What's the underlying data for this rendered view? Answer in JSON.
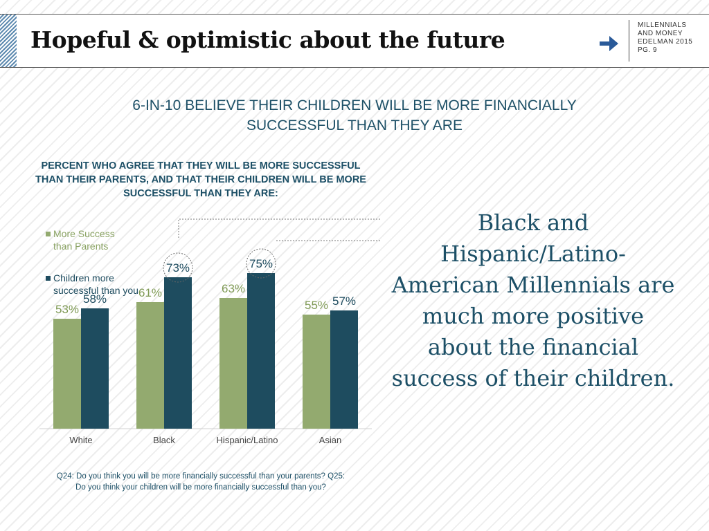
{
  "header": {
    "title": "Hopeful & optimistic about the future",
    "brand_lines": [
      "MILLENNIALS",
      "AND MONEY",
      "EDELMAN 2015",
      "PG. 9"
    ],
    "brand_icon": "arrow-icon"
  },
  "main": {
    "heading": "6-IN-10 BELIEVE THEIR CHILDREN WILL BE MORE FINANCIALLY SUCCESSFUL THAN THEY ARE",
    "callout": "Black and Hispanic/Latino-American Millennials are much more positive about the financial success of their children.",
    "footnote": "Q24: Do you think you will be more financially successful than your parents? Q25: Do you think your children will be more financially successful than you?"
  },
  "colors": {
    "series_1": "#93aa6f",
    "series_2": "#1e4c5f",
    "heading_text": "#1c4f66"
  },
  "chart_data": {
    "type": "bar",
    "title": "PERCENT WHO AGREE THAT THEY WILL BE MORE SUCCESSFUL THAN THEIR PARENTS, AND THAT THEIR CHILDREN WILL BE MORE SUCCESSFUL THAN THEY ARE:",
    "categories": [
      "White",
      "Black",
      "Hispanic/Latino",
      "Asian"
    ],
    "series": [
      {
        "name": "More Success than Parents",
        "values": [
          53,
          61,
          63,
          55
        ],
        "labels": [
          "53%",
          "61%",
          "63%",
          "55%"
        ]
      },
      {
        "name": "Children more successful than you",
        "values": [
          58,
          73,
          75,
          57
        ],
        "labels": [
          "58%",
          "73%",
          "75%",
          "57%"
        ]
      }
    ],
    "ylim": [
      0,
      100
    ],
    "legend_position": "top-left",
    "highlighted": [
      "Black",
      "Hispanic/Latino"
    ],
    "grid": false
  }
}
